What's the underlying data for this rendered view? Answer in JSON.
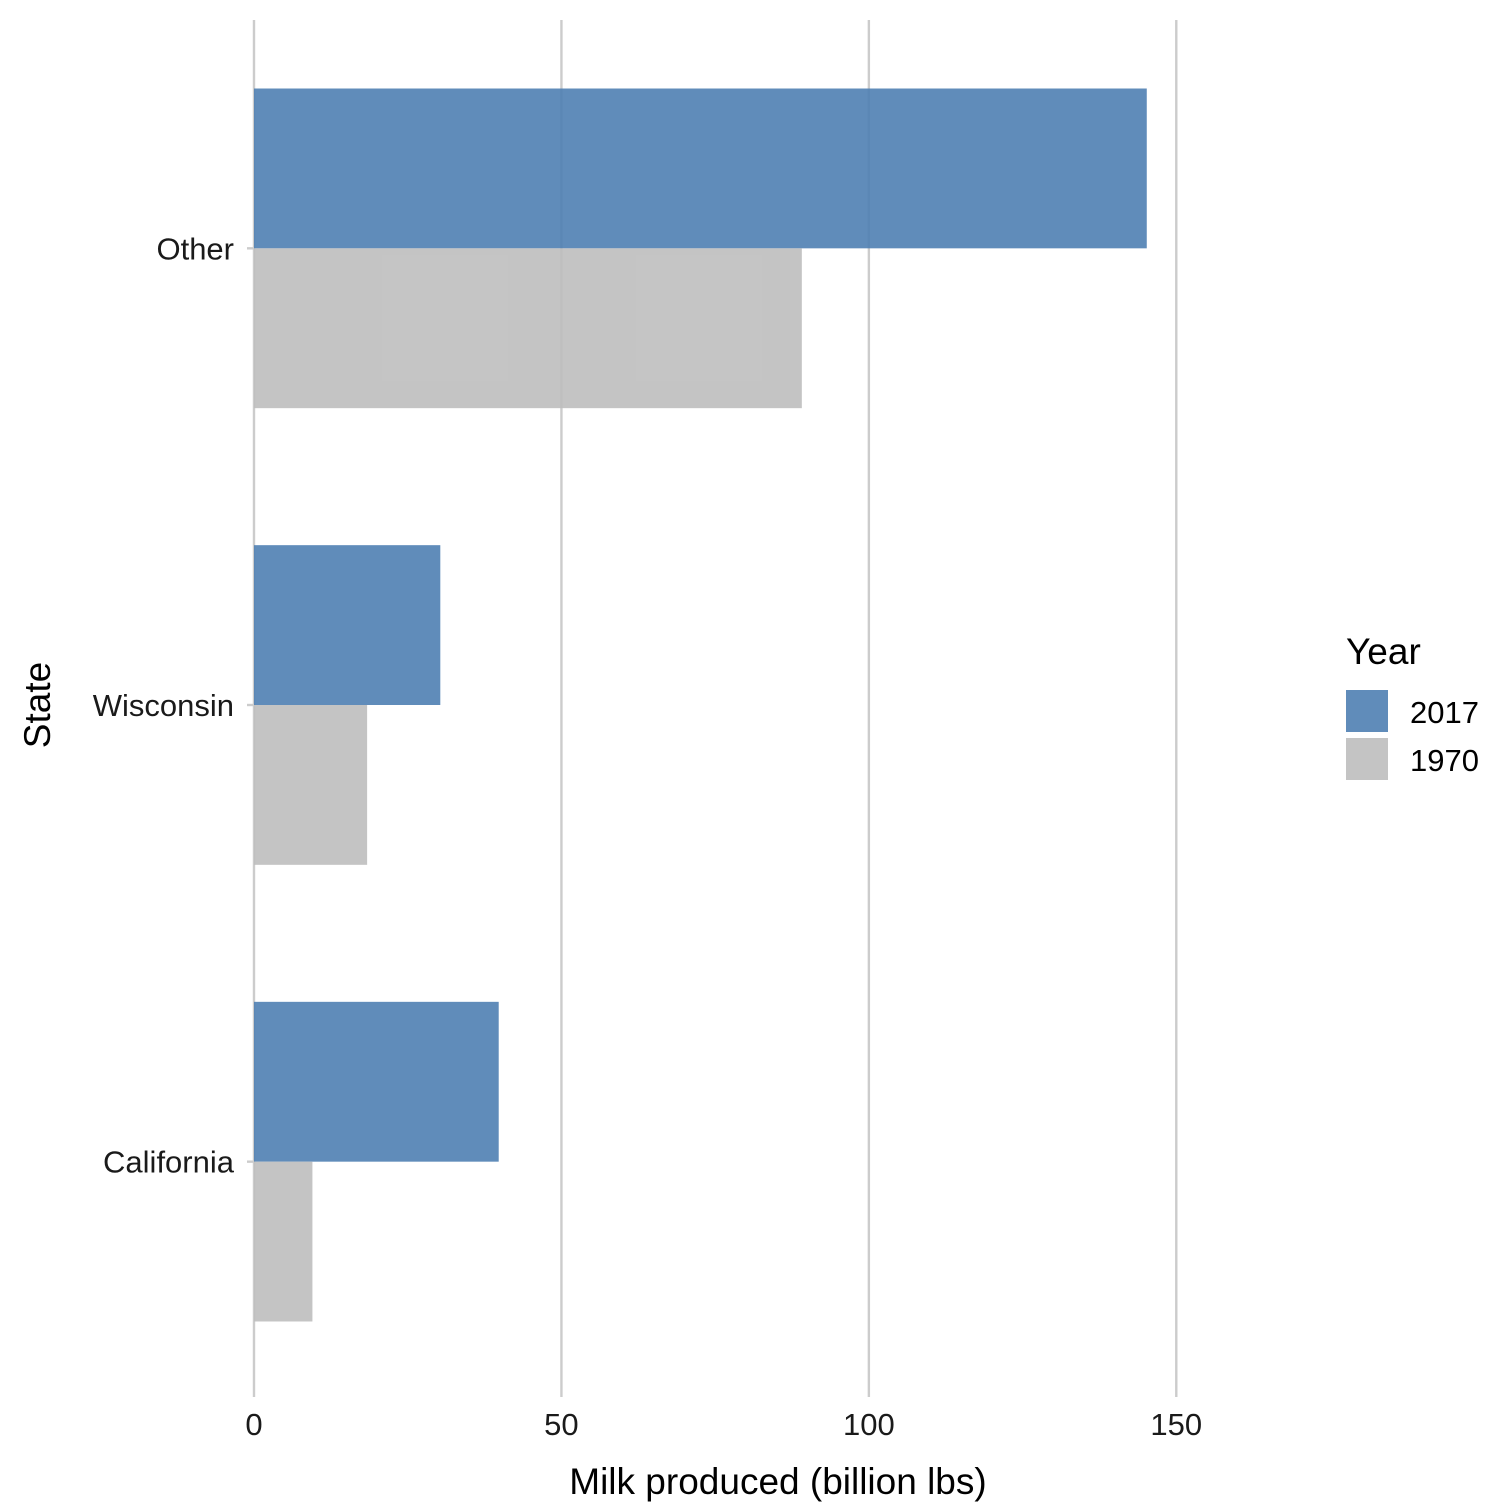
{
  "chart_data": {
    "type": "bar",
    "orientation": "horizontal",
    "categories": [
      "Other",
      "Wisconsin",
      "California"
    ],
    "series": [
      {
        "name": "2017",
        "values": [
          145.2,
          30.3,
          39.8
        ],
        "color": "#4f7fb2"
      },
      {
        "name": "1970",
        "values": [
          89.1,
          18.4,
          9.5
        ],
        "color": "#bebebe"
      }
    ],
    "xticks": [
      "0",
      "50",
      "100",
      "150"
    ],
    "xtick_values": [
      0,
      50,
      100,
      150
    ],
    "xlim": [
      0,
      175
    ],
    "xlabel": "Milk produced (billion lbs)",
    "ylabel": "State",
    "legend": {
      "title": "Year",
      "position": "right",
      "entries": [
        "2017",
        "1970"
      ]
    },
    "grid": "vertical-major",
    "bar_opacity": 0.9
  }
}
